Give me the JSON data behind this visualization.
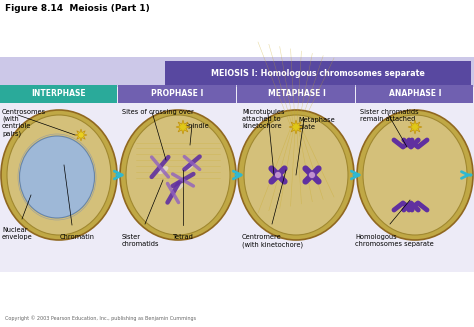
{
  "title": "Figure 8.14  Meiosis (Part 1)",
  "meiosis_banner": "MEIOSIS I: Homologous chromosomes separate",
  "phases": [
    "INTERPHASE",
    "PROPHASE I",
    "METAPHASE I",
    "ANAPHASE I"
  ],
  "phase_colors": [
    "#2aaa9a",
    "#7060b0",
    "#7060b0",
    "#7060b0"
  ],
  "meiosis_banner_color": "#5848a0",
  "meiosis_banner_bg": "#c0b8dc",
  "bg_color": "#dcd8f0",
  "cell_fill": "#d4c07a",
  "cell_outer": "#c0a845",
  "nucleus_color": "#9ab8e0",
  "copyright": "Copyright © 2003 Pearson Education, Inc., publishing as Benjamin Cummings",
  "arrow_color": "#30b8d0",
  "chrom_color": "#6030a0"
}
